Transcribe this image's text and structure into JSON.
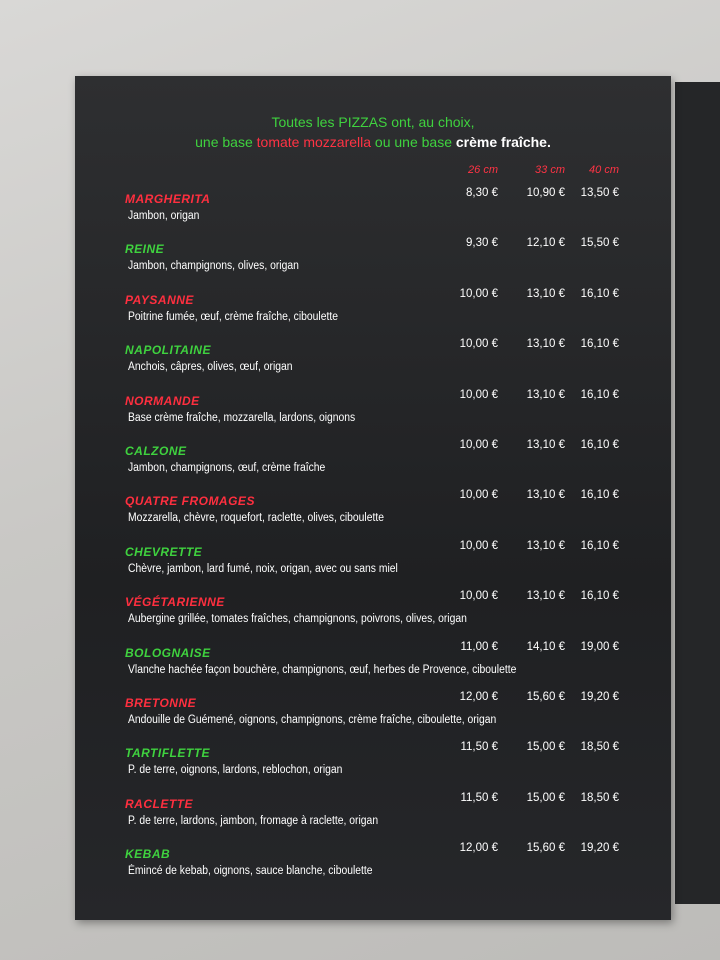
{
  "header": {
    "line1": "Toutes les PIZZAS ont, au choix,",
    "line2": [
      {
        "text": "une base ",
        "color": "#3fd23f"
      },
      {
        "text": "tomate mozzarella",
        "color": "#ff3344"
      },
      {
        "text": " ou une base ",
        "color": "#3fd23f"
      },
      {
        "text": "crème fraîche.",
        "color": "#ffffff"
      }
    ]
  },
  "sizes": [
    "26 cm",
    "33 cm",
    "40 cm"
  ],
  "items": [
    {
      "name": "MARGHERITA",
      "color": "#ff2f3f",
      "desc": "Jambon, origan",
      "prices": [
        "8,30 €",
        "10,90 €",
        "13,50 €"
      ]
    },
    {
      "name": "REINE",
      "color": "#3fd23f",
      "desc": "Jambon, champignons, olives, origan",
      "prices": [
        "9,30 €",
        "12,10 €",
        "15,50 €"
      ]
    },
    {
      "name": "PAYSANNE",
      "color": "#ff2f3f",
      "desc": "Poitrine fumée, œuf, crème fraîche, ciboulette",
      "prices": [
        "10,00 €",
        "13,10 €",
        "16,10 €"
      ]
    },
    {
      "name": "NAPOLITAINE",
      "color": "#3fd23f",
      "desc": "Anchois, câpres, olives, œuf, origan",
      "prices": [
        "10,00 €",
        "13,10 €",
        "16,10 €"
      ]
    },
    {
      "name": "NORMANDE",
      "color": "#ff2f3f",
      "desc": "Base crème fraîche, mozzarella, lardons, oignons",
      "prices": [
        "10,00 €",
        "13,10 €",
        "16,10 €"
      ]
    },
    {
      "name": "CALZONE",
      "color": "#3fd23f",
      "desc": "Jambon, champignons, œuf, crème fraîche",
      "prices": [
        "10,00 €",
        "13,10 €",
        "16,10 €"
      ]
    },
    {
      "name": "QUATRE FROMAGES",
      "color": "#ff2f3f",
      "desc": "Mozzarella, chèvre, roquefort, raclette, olives, ciboulette",
      "prices": [
        "10,00 €",
        "13,10 €",
        "16,10 €"
      ]
    },
    {
      "name": "CHEVRETTE",
      "color": "#3fd23f",
      "desc": "Chèvre, jambon, lard fumé, noix, origan, avec ou sans miel",
      "prices": [
        "10,00 €",
        "13,10 €",
        "16,10 €"
      ]
    },
    {
      "name": "VÉGÉTARIENNE",
      "color": "#ff2f3f",
      "desc": "Aubergine grillée, tomates fraîches, champignons, poivrons, olives, origan",
      "prices": [
        "10,00 €",
        "13,10 €",
        "16,10 €"
      ]
    },
    {
      "name": "BOLOGNAISE",
      "color": "#3fd23f",
      "desc": "Vlanche hachée façon bouchère, champignons, œuf, herbes de Provence, ciboulette",
      "prices": [
        "11,00 €",
        "14,10 €",
        "19,00 €"
      ]
    },
    {
      "name": "BRETONNE",
      "color": "#ff2f3f",
      "desc": "Andouille de Guémené, oignons, champignons, crème fraîche, ciboulette, origan",
      "prices": [
        "12,00 €",
        "15,60 €",
        "19,20 €"
      ]
    },
    {
      "name": "TARTIFLETTE",
      "color": "#3fd23f",
      "desc": "P. de terre, oignons, lardons, reblochon, origan",
      "prices": [
        "11,50 €",
        "15,00 €",
        "18,50 €"
      ]
    },
    {
      "name": "RACLETTE",
      "color": "#ff2f3f",
      "desc": "P. de terre, lardons, jambon, fromage à raclette, origan",
      "prices": [
        "11,50 €",
        "15,00 €",
        "18,50 €"
      ]
    },
    {
      "name": "KEBAB",
      "color": "#3fd23f",
      "desc": "Émincé de kebab, oignons, sauce blanche, ciboulette",
      "prices": [
        "12,00 €",
        "15,60 €",
        "19,20 €"
      ]
    }
  ]
}
